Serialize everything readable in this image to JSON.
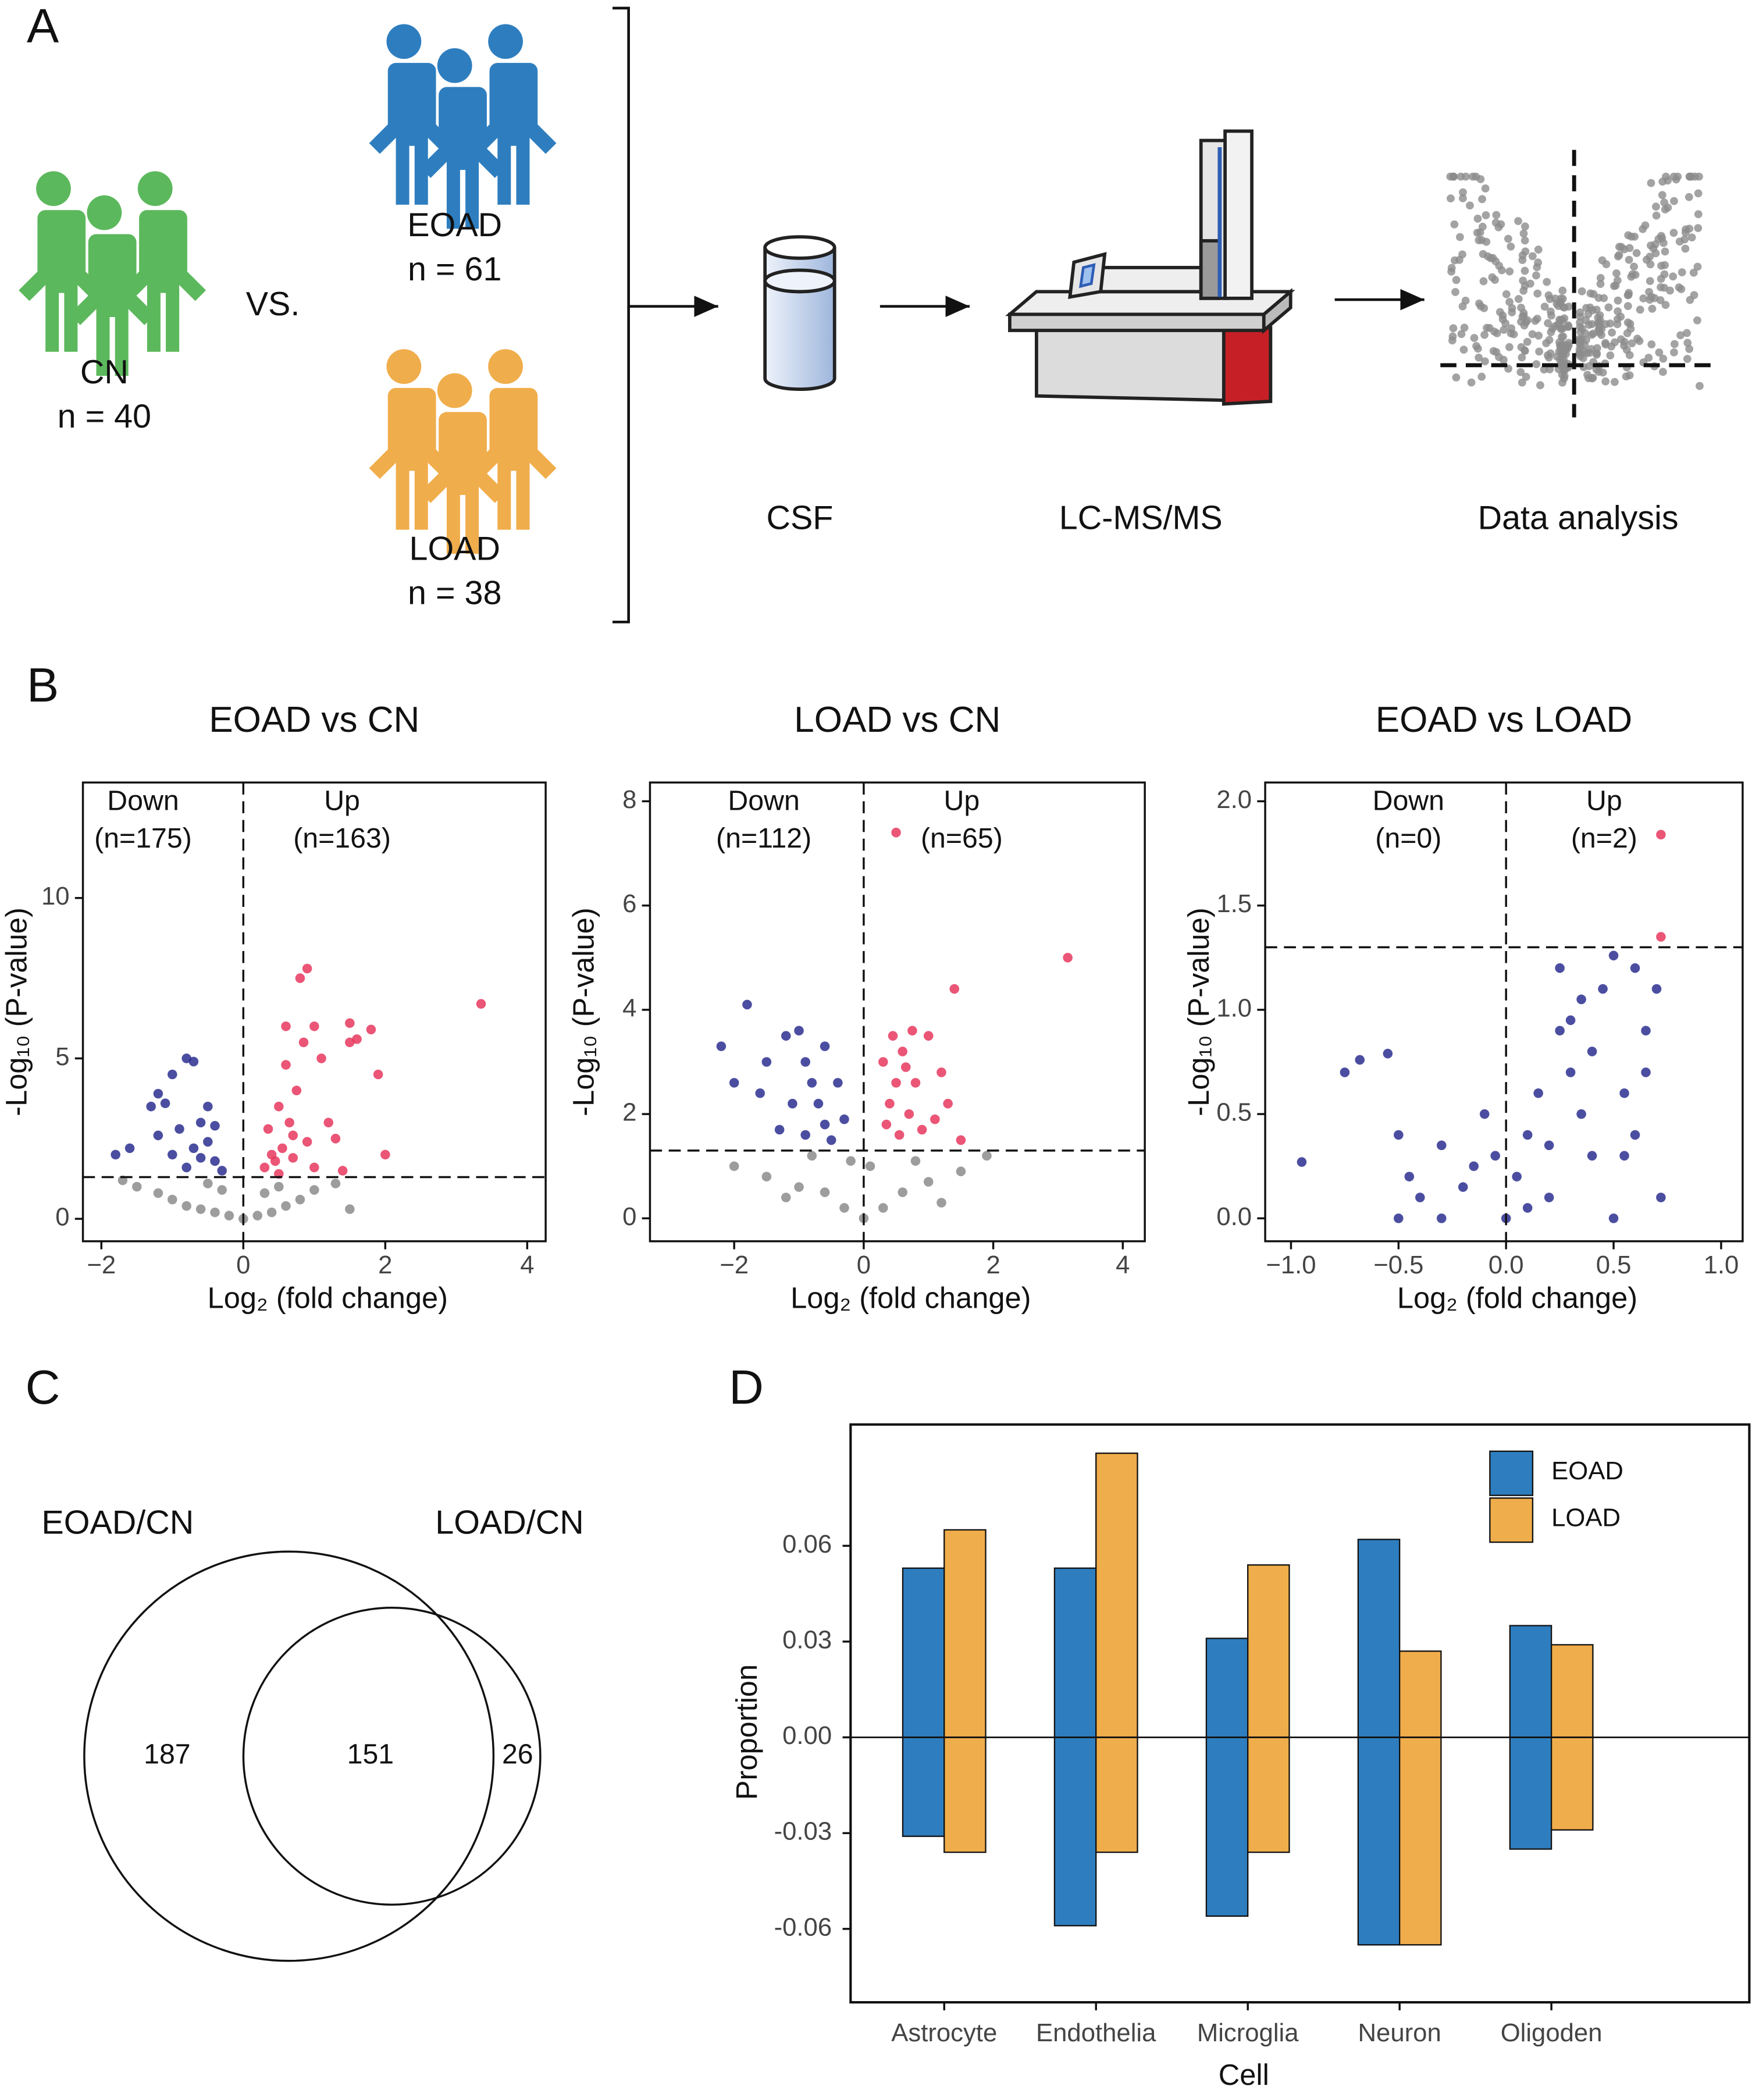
{
  "panel_labels": [
    "A",
    "B",
    "C",
    "D"
  ],
  "workflow": {
    "groups": [
      {
        "label": "CN",
        "n": "n = 40"
      },
      {
        "label": "EOAD",
        "n": "n = 61"
      },
      {
        "label": "LOAD",
        "n": "n = 38"
      }
    ],
    "vs": "VS.",
    "steps": [
      "CSF",
      "LC-MS/MS",
      "Data analysis"
    ]
  },
  "chart_data": [
    {
      "type": "volcano",
      "title": "EOAD vs CN",
      "xlabel": "Log₂ (fold change)",
      "ylabel": "-Log₁₀ (P-value)",
      "xlim": [
        -2.26,
        4.26
      ],
      "ylim": [
        -0.7,
        13.6
      ],
      "xticks": [
        {
          "value": -2,
          "label": "−2"
        },
        0,
        2,
        4
      ],
      "yticks": [
        0,
        5,
        10
      ],
      "hline": 1.3,
      "vline": 0,
      "annotations": [
        "Down",
        "(n=175)",
        "Up",
        "(n=163)"
      ],
      "series": [
        {
          "color": "#8c8c8c",
          "x": [
            -1.5,
            -1.2,
            -1.0,
            -0.8,
            -0.6,
            -0.4,
            -0.2,
            0,
            0.2,
            0.4,
            0.6,
            0.8,
            1.0,
            1.3,
            -0.3,
            0.3,
            0.5,
            -0.5,
            1.5,
            -1.7
          ],
          "values": [
            1.0,
            0.8,
            0.6,
            0.4,
            0.3,
            0.2,
            0.1,
            0,
            0.1,
            0.2,
            0.4,
            0.6,
            0.9,
            1.1,
            0.9,
            0.8,
            1.0,
            1.1,
            0.3,
            1.2
          ]
        },
        {
          "color": "#2b2f8f",
          "x": [
            -1.8,
            -1.6,
            -1.3,
            -1.2,
            -1.1,
            -1.0,
            -0.8,
            -0.7,
            -0.6,
            -0.5,
            -0.4,
            -0.3,
            -0.9,
            -1.0,
            -0.8,
            -0.6,
            -0.5,
            -1.2,
            -0.7,
            -0.4
          ],
          "values": [
            2.0,
            2.2,
            3.5,
            3.9,
            3.6,
            4.5,
            5.0,
            4.9,
            3.0,
            2.4,
            1.8,
            1.5,
            2.8,
            2.0,
            1.6,
            1.9,
            3.5,
            2.6,
            2.2,
            2.9
          ]
        },
        {
          "color": "#e8375e",
          "x": [
            0.4,
            0.5,
            0.6,
            0.7,
            0.8,
            0.9,
            1.0,
            1.1,
            1.2,
            1.5,
            1.5,
            1.6,
            1.8,
            1.9,
            2.0,
            3.35,
            0.3,
            0.45,
            0.55,
            0.65,
            0.75,
            0.85,
            1.3,
            0.35,
            0.6,
            1.4,
            0.5,
            1.0,
            0.7,
            0.9
          ],
          "values": [
            2.0,
            3.5,
            4.8,
            2.6,
            7.5,
            7.8,
            6.0,
            5.0,
            3.0,
            6.1,
            5.5,
            5.6,
            5.9,
            4.5,
            2.0,
            6.7,
            1.6,
            1.8,
            2.2,
            3.0,
            4.0,
            5.5,
            2.5,
            2.8,
            6.0,
            1.5,
            1.4,
            1.6,
            1.9,
            2.4
          ]
        }
      ]
    },
    {
      "type": "volcano",
      "title": "LOAD vs CN",
      "xlabel": "Log₂ (fold change)",
      "ylabel": "-Log₁₀ (P-value)",
      "xlim": [
        -3.3,
        4.34
      ],
      "ylim": [
        -0.44,
        8.36
      ],
      "xticks": [
        {
          "value": -2,
          "label": "−2"
        },
        0,
        2,
        4
      ],
      "yticks": [
        0,
        2,
        4,
        6,
        8
      ],
      "hline": 1.3,
      "vline": 0,
      "annotations": [
        "Down",
        "(n=112)",
        "Up",
        "(n=65)"
      ],
      "series": [
        {
          "color": "#8c8c8c",
          "x": [
            -2.0,
            -1.5,
            -1.0,
            -0.6,
            -0.3,
            0,
            0.3,
            0.6,
            1.0,
            1.5,
            1.9,
            -0.8,
            0.8,
            -1.2,
            1.2,
            0.1,
            -0.2
          ],
          "values": [
            1.0,
            0.8,
            0.6,
            0.5,
            0.2,
            0,
            0.2,
            0.5,
            0.7,
            0.9,
            1.2,
            1.2,
            1.1,
            0.4,
            0.3,
            1.0,
            1.1
          ]
        },
        {
          "color": "#2b2f8f",
          "x": [
            -2.2,
            -1.8,
            -1.6,
            -1.5,
            -1.2,
            -1.0,
            -0.9,
            -0.8,
            -0.7,
            -0.6,
            -0.5,
            -0.3,
            -1.1,
            -0.4,
            -0.9,
            -2.0,
            -0.6,
            -1.3
          ],
          "values": [
            3.3,
            4.1,
            2.4,
            3.0,
            3.5,
            3.6,
            3.0,
            2.6,
            2.2,
            1.8,
            1.5,
            1.9,
            2.2,
            2.6,
            1.6,
            2.6,
            3.3,
            1.7
          ]
        },
        {
          "color": "#e8375e",
          "x": [
            0.3,
            0.4,
            0.5,
            0.5,
            0.6,
            0.7,
            0.8,
            1.0,
            1.2,
            1.3,
            1.4,
            1.5,
            3.15,
            0.35,
            0.45,
            0.55,
            0.65,
            0.9,
            0.75,
            1.1
          ],
          "values": [
            3.0,
            2.2,
            7.4,
            2.6,
            3.2,
            2.0,
            2.6,
            3.5,
            2.8,
            2.2,
            4.4,
            1.5,
            5.0,
            1.8,
            3.5,
            1.6,
            2.9,
            1.7,
            3.6,
            1.9
          ]
        }
      ]
    },
    {
      "type": "volcano",
      "title": "EOAD vs LOAD",
      "xlabel": "Log₂ (fold change)",
      "ylabel": "-Log₁₀ (P-value)",
      "xlim": [
        -1.12,
        1.1
      ],
      "ylim": [
        -0.11,
        2.09
      ],
      "xticks": [
        {
          "value": -1,
          "label": "−1.0"
        },
        {
          "value": -0.5,
          "label": "−0.5"
        },
        {
          "value": 0,
          "label": "0.0"
        },
        0.5,
        {
          "value": 1,
          "label": "1.0"
        }
      ],
      "yticks": [
        {
          "value": 0,
          "label": "0.0"
        },
        0.5,
        {
          "value": 1,
          "label": "1.0"
        },
        1.5,
        {
          "value": 2,
          "label": "2.0"
        }
      ],
      "hline": 1.3,
      "vline": 0,
      "annotations": [
        "Down",
        "(n=0)",
        "Up",
        "(n=2)"
      ],
      "series": [
        {
          "color": "#2b2f8f",
          "x": [
            -0.95,
            -0.75,
            -0.68,
            -0.55,
            -0.5,
            -0.45,
            -0.4,
            -0.3,
            -0.2,
            -0.15,
            -0.1,
            -0.05,
            0,
            -0.3,
            -0.5,
            0.05,
            0.1,
            0.15,
            0.2,
            0.25,
            0.3,
            0.35,
            0.4,
            0.45,
            0.5,
            0.55,
            0.6,
            0.65,
            0.7,
            0.72,
            0.3,
            0.25,
            0.4,
            0.2,
            0.5,
            0.6,
            0.1,
            0.35,
            0.55,
            0.65
          ],
          "values": [
            0.27,
            0.7,
            0.76,
            0.79,
            0.4,
            0.2,
            0.1,
            0.35,
            0.15,
            0.25,
            0.5,
            0.3,
            0,
            0,
            0,
            0.2,
            0.4,
            0.6,
            0.35,
            0.9,
            0.7,
            0.5,
            0.8,
            1.1,
            1.26,
            0.6,
            1.2,
            0.9,
            1.1,
            0.1,
            0.95,
            1.2,
            0.3,
            0.1,
            0,
            0.4,
            0.05,
            1.05,
            0.3,
            0.7
          ]
        },
        {
          "color": "#e8375e",
          "x": [
            0.72,
            0.72
          ],
          "values": [
            1.84,
            1.35
          ]
        }
      ]
    },
    {
      "type": "venn",
      "sets": [
        "EOAD/CN",
        "LOAD/CN"
      ],
      "values": [
        187,
        151,
        26
      ]
    },
    {
      "type": "bar",
      "xlabel": "Cell",
      "ylabel": "Proportion",
      "categories": [
        "Astrocyte",
        "Endothelia",
        "Microglia",
        "Neuron",
        "Oligoden"
      ],
      "ylim": [
        -0.083,
        0.098
      ],
      "yticks": [
        -0.06,
        -0.03,
        {
          "value": 0,
          "label": "0.00"
        },
        0.03,
        0.06
      ],
      "legend": "top-right",
      "series": [
        {
          "name": "EOAD",
          "color": "#2e7ebf",
          "values": [
            0.053,
            0.053,
            0.031,
            0.062,
            0.035
          ],
          "negative_values": [
            -0.031,
            -0.059,
            -0.056,
            -0.065,
            -0.035
          ]
        },
        {
          "name": "LOAD",
          "color": "#f0ad4b",
          "values": [
            0.065,
            0.089,
            0.054,
            0.027,
            0.029
          ],
          "negative_values": [
            -0.036,
            -0.036,
            -0.036,
            -0.065,
            -0.029
          ]
        }
      ]
    }
  ]
}
